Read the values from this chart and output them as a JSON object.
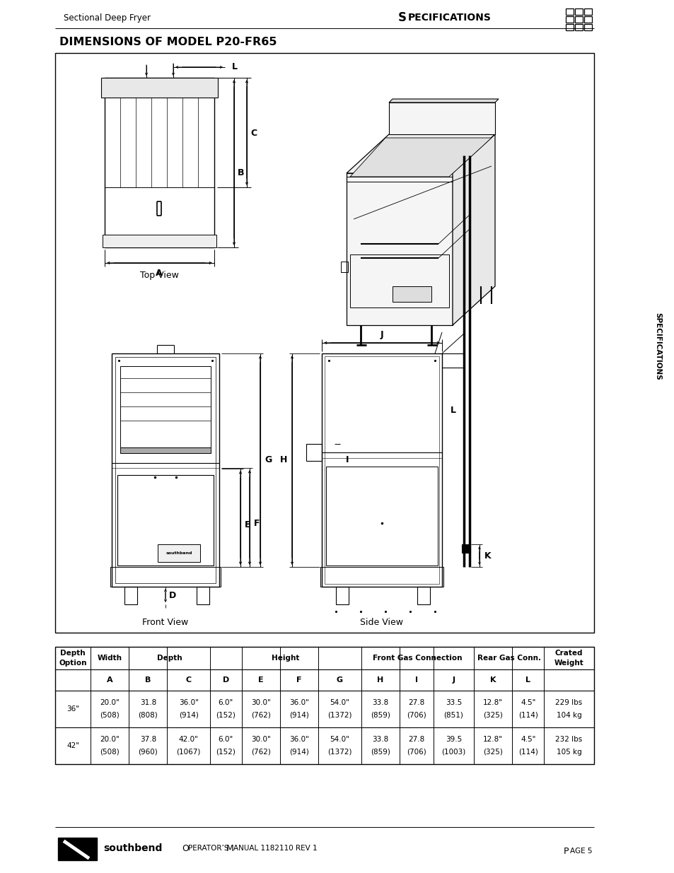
{
  "page_width": 9.54,
  "page_height": 12.35,
  "bg_color": "#ffffff",
  "header_left": "Sectional Deep Fryer",
  "header_right": "Specifications",
  "title": "DIMENSIONS OF MODEL P20-FR65",
  "sidebar_text": "SPECIFICATIONS",
  "footer_manual": "Operator’s Manual 1182110 rev 1",
  "footer_page": "Page 5",
  "label_top_view": "Top View",
  "label_front_view": "Front View",
  "label_side_view": "Side View",
  "table_col_widths": [
    48,
    52,
    52,
    58,
    43,
    52,
    52,
    58,
    52,
    46,
    55,
    52,
    43,
    68
  ],
  "table_row1": [
    "36\"",
    "20.0\"\n(508)",
    "31.8\n(808)",
    "36.0\"\n(914)",
    "6.0\"\n(152)",
    "30.0\"\n(762)",
    "36.0\"\n(914)",
    "54.0\"\n(1372)",
    "33.8\n(859)",
    "27.8\n(706)",
    "33.5\n(851)",
    "12.8\"\n(325)",
    "4.5\"\n(114)",
    "229 lbs\n104 kg"
  ],
  "table_row2": [
    "42\"",
    "20.0\"\n(508)",
    "37.8\n(960)",
    "42.0\"\n(1067)",
    "6.0\"\n(152)",
    "30.0\"\n(762)",
    "36.0\"\n(914)",
    "54.0\"\n(1372)",
    "33.8\n(859)",
    "27.8\n(706)",
    "39.5\n(1003)",
    "12.8\"\n(325)",
    "4.5\"\n(114)",
    "232 lbs\n105 kg"
  ]
}
